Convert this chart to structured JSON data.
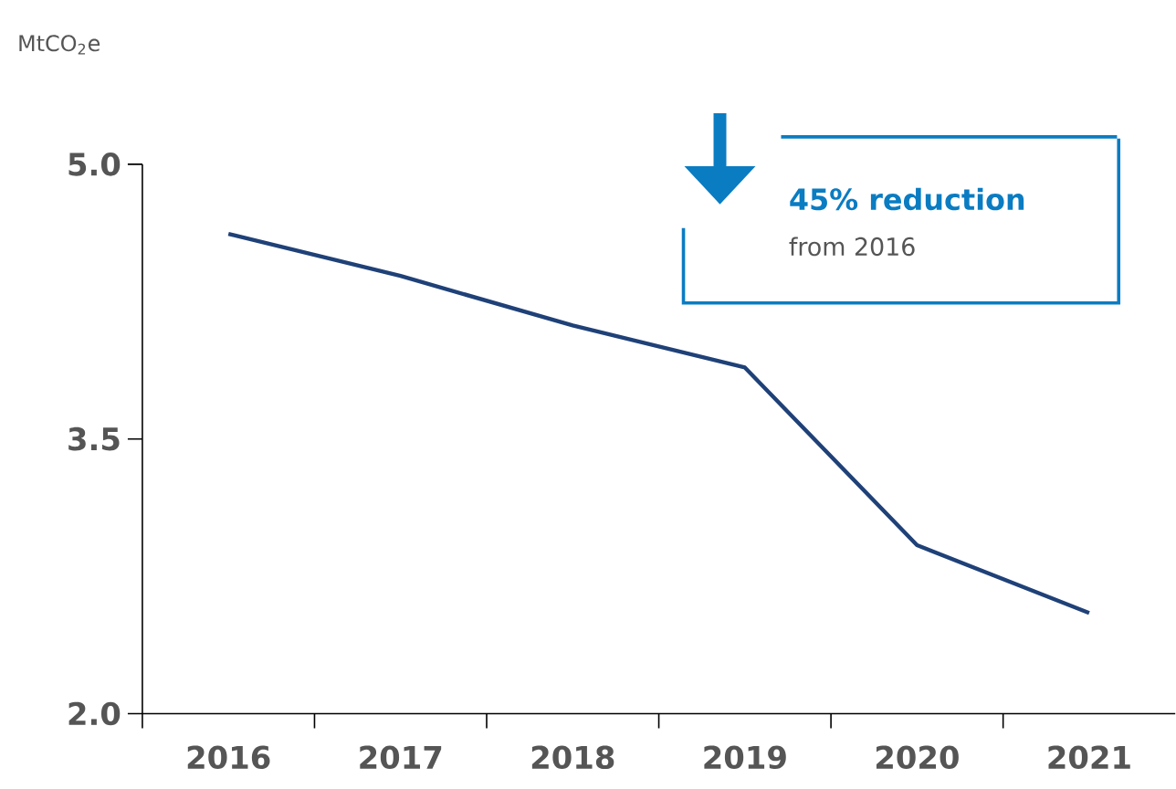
{
  "chart_data": {
    "type": "line",
    "ylabel": "MtCO$_{2}$e",
    "categories": [
      "2016",
      "2017",
      "2018",
      "2019",
      "2020",
      "2021"
    ],
    "series": [
      {
        "color": "#1f4178",
        "values": [
          4.62,
          4.39,
          4.12,
          3.89,
          2.92,
          2.55
        ]
      }
    ],
    "ylim": [
      2.0,
      5.0
    ],
    "yticks": [
      {
        "value": 2.0,
        "label": "2.0"
      },
      {
        "value": 3.5,
        "label": "3.5"
      },
      {
        "value": 5.0,
        "label": "5.0"
      }
    ],
    "annotations": [
      "45% reduction",
      "from 2016"
    ]
  }
}
